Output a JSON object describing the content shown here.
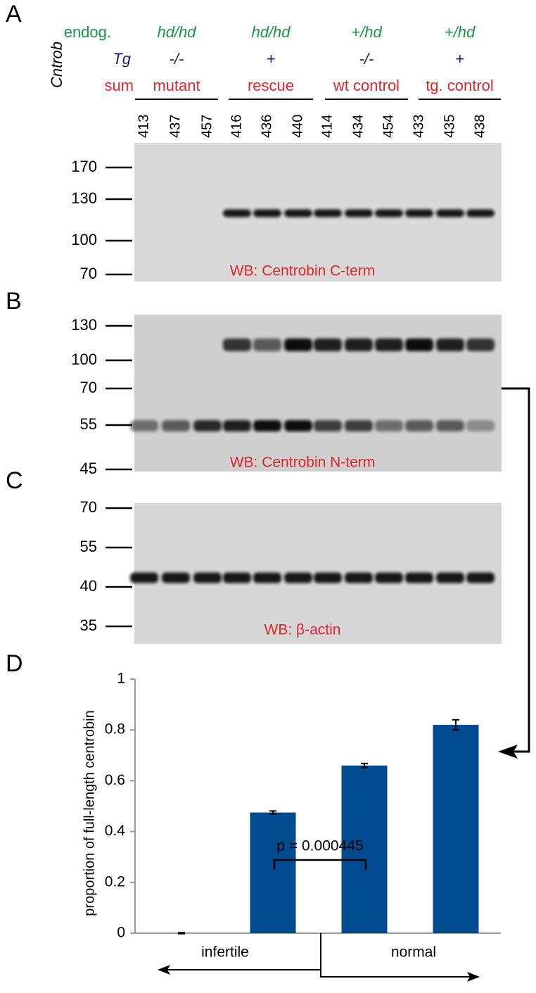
{
  "panel_labels": [
    "A",
    "B",
    "C",
    "D"
  ],
  "header": {
    "gene": "Cntrob",
    "row_labels": [
      "endog.",
      "Tg",
      "sum"
    ],
    "groups": [
      {
        "endog": "hd/hd",
        "tg": "-/-",
        "sum": "mutant",
        "lanes": [
          "413",
          "437",
          "457"
        ]
      },
      {
        "endog": "hd/hd",
        "tg": "+",
        "sum": "rescue",
        "lanes": [
          "416",
          "436",
          "440"
        ]
      },
      {
        "endog": "+/hd",
        "tg": "-/-",
        "sum": "wt control",
        "lanes": [
          "414",
          "434",
          "454"
        ]
      },
      {
        "endog": "+/hd",
        "tg": "+",
        "sum": "tg. control",
        "lanes": [
          "433",
          "435",
          "438"
        ]
      }
    ]
  },
  "blots": [
    {
      "markers": [
        170,
        130,
        100,
        70
      ],
      "label": "WB: Centrobin C-term"
    },
    {
      "markers": [
        130,
        100,
        70,
        55,
        45
      ],
      "label": "WB: Centrobin N-term"
    },
    {
      "markers": [
        70,
        55,
        40,
        35
      ],
      "label": "WB: β-actin"
    }
  ],
  "chart_data": {
    "type": "bar",
    "y_label": "proportion of full-length centrobin",
    "categories": [
      null,
      null,
      null,
      null
    ],
    "values": [
      0,
      0.475,
      0.66,
      0.82
    ],
    "errors": [
      0.002,
      0.006,
      0.008,
      0.02
    ],
    "color": "#004a8f",
    "ylim": [
      0,
      1
    ],
    "yticks": [
      0,
      0.2,
      0.4,
      0.6,
      0.8,
      1
    ],
    "annotation": "p = 0.000445",
    "groups": [
      "infertile",
      "normal"
    ]
  }
}
